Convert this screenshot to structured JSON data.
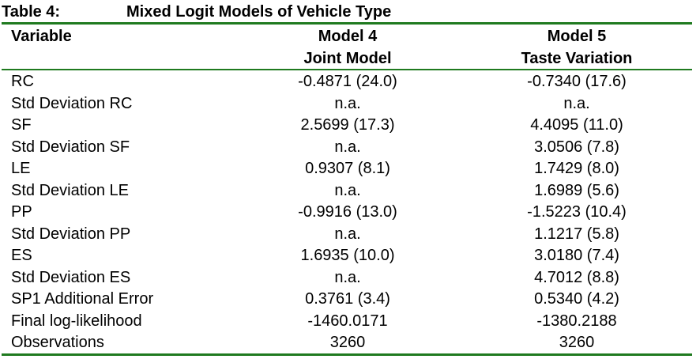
{
  "title": {
    "label": "Table 4:",
    "text": "Mixed Logit Models of Vehicle Type"
  },
  "table": {
    "header": [
      [
        "Variable"
      ],
      [
        "Model 4",
        "Joint Model"
      ],
      [
        "Model 5",
        "Taste Variation"
      ]
    ],
    "rows": [
      [
        "RC",
        "-0.4871 (24.0)",
        "-0.7340 (17.6)"
      ],
      [
        "Std Deviation RC",
        "n.a.",
        "n.a."
      ],
      [
        "SF",
        "2.5699 (17.3)",
        "4.4095 (11.0)"
      ],
      [
        "Std Deviation SF",
        "n.a.",
        "3.0506 (7.8)"
      ],
      [
        "LE",
        "0.9307 (8.1)",
        "1.7429 (8.0)"
      ],
      [
        "Std Deviation LE",
        "n.a.",
        "1.6989 (5.6)"
      ],
      [
        "PP",
        "-0.9916 (13.0)",
        "-1.5223 (10.4)"
      ],
      [
        "Std Deviation PP",
        "n.a.",
        "1.1217 (5.8)"
      ],
      [
        "ES",
        "1.6935 (10.0)",
        "3.0180 (7.4)"
      ],
      [
        "Std Deviation ES",
        "n.a.",
        "4.7012 (8.8)"
      ],
      [
        "SP1 Additional Error",
        "0.3761 (3.4)",
        "0.5340 (4.2)"
      ],
      [
        "Final log-likelihood",
        "-1460.0171",
        "-1380.2188"
      ],
      [
        "Observations",
        "3260",
        "3260"
      ]
    ]
  }
}
